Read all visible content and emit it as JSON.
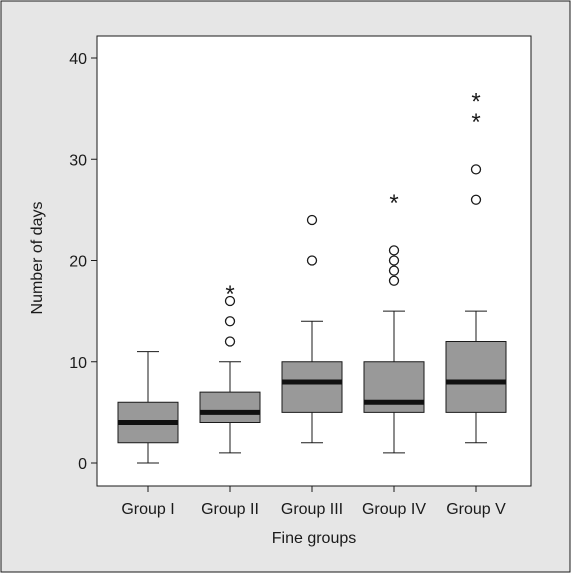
{
  "chart_data": {
    "type": "boxplot",
    "xlabel": "Fine groups",
    "ylabel": "Number of days",
    "ylim": [
      -2,
      42
    ],
    "yticks": [
      0,
      10,
      20,
      30,
      40
    ],
    "grid": false,
    "legend": "none",
    "colors": {
      "box_fill": "#999999",
      "median": "#111111",
      "outer_bg": "#e6e6e6",
      "plot_bg": "#ffffff"
    },
    "categories": [
      "Group I",
      "Group II",
      "Group III",
      "Group IV",
      "Group V"
    ],
    "groups": [
      {
        "label": "Group I",
        "whisker_low": 0,
        "q1": 2,
        "median": 4,
        "q3": 6,
        "whisker_high": 11,
        "outliers": [],
        "extremes": []
      },
      {
        "label": "Group II",
        "whisker_low": 1,
        "q1": 4,
        "median": 5,
        "q3": 7,
        "whisker_high": 10,
        "outliers": [
          12,
          14,
          16
        ],
        "extremes": [
          17
        ]
      },
      {
        "label": "Group III",
        "whisker_low": 2,
        "q1": 5,
        "median": 8,
        "q3": 10,
        "whisker_high": 14,
        "outliers": [
          20,
          24
        ],
        "extremes": []
      },
      {
        "label": "Group IV",
        "whisker_low": 1,
        "q1": 5,
        "median": 6,
        "q3": 10,
        "whisker_high": 15,
        "outliers": [
          18,
          19,
          20,
          21
        ],
        "extremes": [
          26
        ]
      },
      {
        "label": "Group V",
        "whisker_low": 2,
        "q1": 5,
        "median": 8,
        "q3": 12,
        "whisker_high": 15,
        "outliers": [
          26,
          29
        ],
        "extremes": [
          34,
          36
        ]
      }
    ]
  }
}
